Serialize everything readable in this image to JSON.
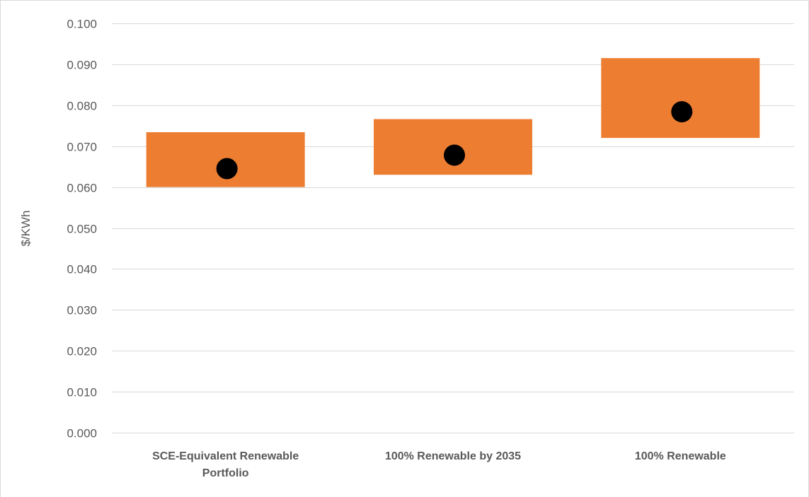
{
  "chart_data": {
    "type": "bar",
    "subtype": "floating-range-with-point",
    "title": "",
    "xlabel": "",
    "ylabel": "$/KWh",
    "ylim": [
      0,
      0.1
    ],
    "yticks": [
      "0.000",
      "0.010",
      "0.020",
      "0.030",
      "0.040",
      "0.050",
      "0.060",
      "0.070",
      "0.080",
      "0.090",
      "0.100"
    ],
    "grid": true,
    "legend": "none",
    "categories": [
      [
        "SCE-Equivalent Renewable",
        "Portfolio"
      ],
      [
        "100% Renewable by 2035"
      ],
      [
        "100% Renewable"
      ]
    ],
    "series": [
      {
        "role": "range",
        "color": "#ed7d31",
        "low": [
          0.06,
          0.063,
          0.072
        ],
        "high": [
          0.0734,
          0.0766,
          0.0915
        ]
      },
      {
        "role": "point",
        "color": "#000000",
        "values": [
          0.0645,
          0.0678,
          0.0784
        ]
      }
    ]
  }
}
